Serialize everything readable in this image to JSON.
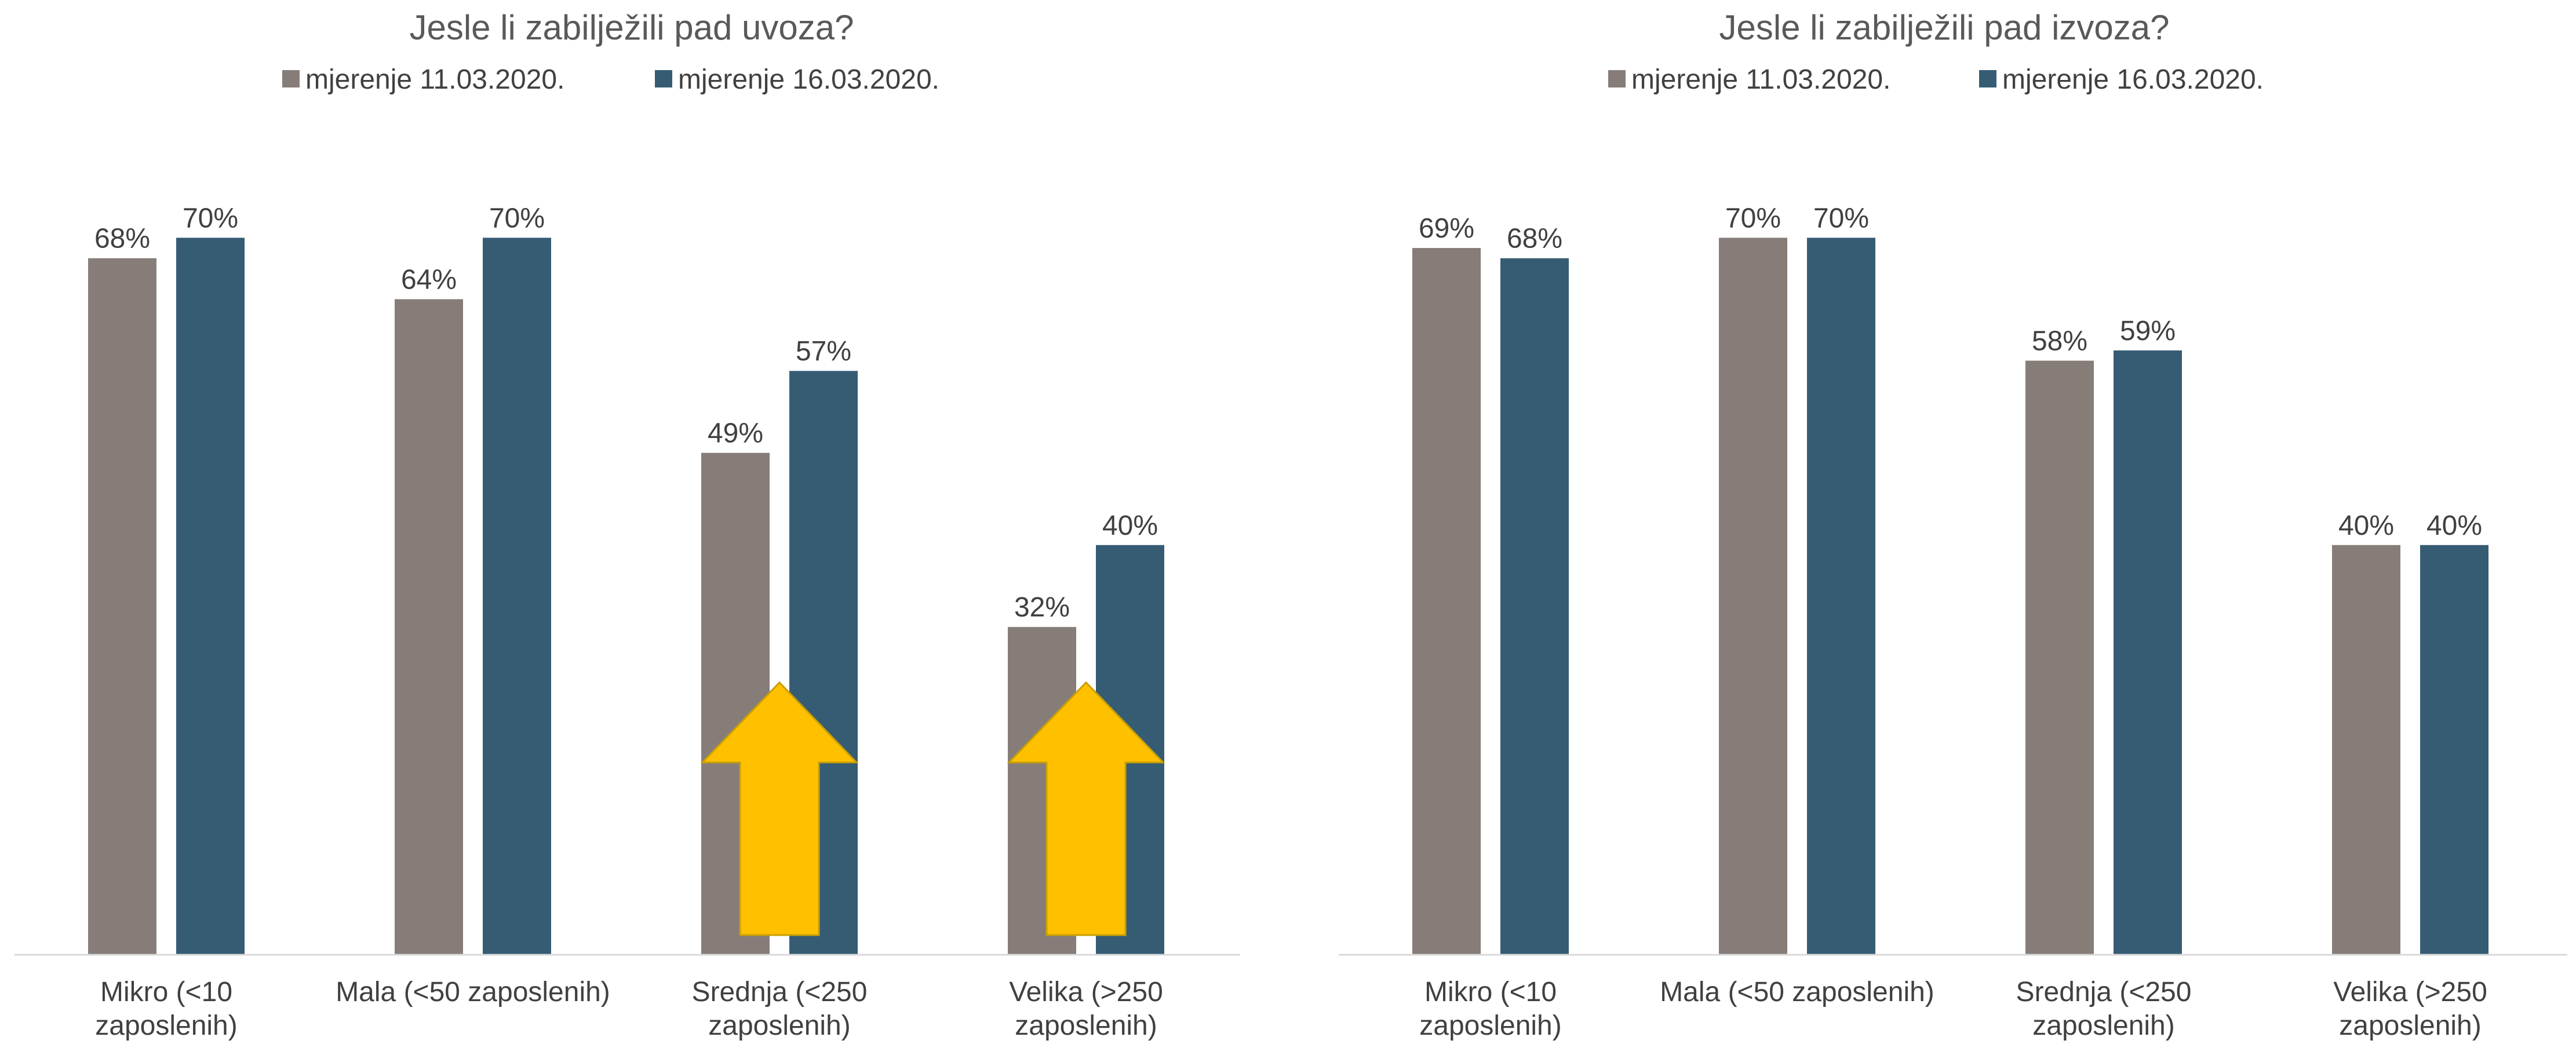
{
  "colors": {
    "series1": "#867D79",
    "series2": "#365C74",
    "text": "#404040",
    "title": "#595959",
    "axis": "#D9D9D9",
    "arrow_fill": "#FFC000",
    "arrow_stroke": "#C9A000"
  },
  "chart_data": [
    {
      "type": "bar",
      "title": "Jesle li zabilježili pad uvoza?",
      "categories": [
        [
          "Mikro (<10",
          "zaposlenih)"
        ],
        [
          "Mala (<50 zaposlenih)"
        ],
        [
          "Srednja (<250",
          "zaposlenih)"
        ],
        [
          "Velika (>250",
          "zaposlenih)"
        ]
      ],
      "series": [
        {
          "name": "mjerenje 11.03.2020.",
          "values": [
            68,
            64,
            49,
            32
          ],
          "labels": [
            "68%",
            "64%",
            "49%",
            "32%"
          ]
        },
        {
          "name": "mjerenje 16.03.2020.",
          "values": [
            70,
            70,
            57,
            40
          ],
          "labels": [
            "70%",
            "70%",
            "57%",
            "40%"
          ]
        }
      ],
      "ylim": [
        0,
        72
      ],
      "grid": false,
      "legend": "top",
      "annotations": [
        {
          "type": "up-arrow",
          "category": 2
        },
        {
          "type": "up-arrow",
          "category": 3
        }
      ]
    },
    {
      "type": "bar",
      "title": "Jesle li zabilježili pad izvoza?",
      "categories": [
        [
          "Mikro (<10",
          "zaposlenih)"
        ],
        [
          "Mala (<50 zaposlenih)"
        ],
        [
          "Srednja (<250",
          "zaposlenih)"
        ],
        [
          "Velika (>250",
          "zaposlenih)"
        ]
      ],
      "series": [
        {
          "name": "mjerenje 11.03.2020.",
          "values": [
            69,
            70,
            58,
            40
          ],
          "labels": [
            "69%",
            "70%",
            "58%",
            "40%"
          ]
        },
        {
          "name": "mjerenje 16.03.2020.",
          "values": [
            68,
            70,
            59,
            40
          ],
          "labels": [
            "68%",
            "70%",
            "59%",
            "40%"
          ]
        }
      ],
      "ylim": [
        0,
        72
      ],
      "grid": false,
      "legend": "top",
      "annotations": []
    }
  ]
}
